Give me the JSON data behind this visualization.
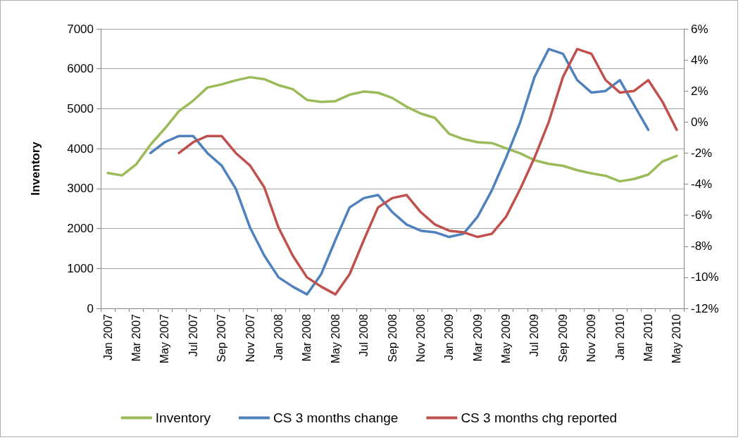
{
  "chart_data": {
    "type": "line",
    "ylabel": "Inventory",
    "categories": [
      "Jan 2007",
      null,
      "Mar 2007",
      null,
      "May 2007",
      null,
      "Jul 2007",
      null,
      "Sep 2007",
      null,
      "Nov 2007",
      null,
      "Jan 2008",
      null,
      "Mar 2008",
      null,
      "May 2008",
      null,
      "Jul 2008",
      null,
      "Sep 2008",
      null,
      "Nov 2008",
      null,
      "Jan 2009",
      null,
      "Mar 2009",
      null,
      "May 2009",
      null,
      "Jul 2009",
      null,
      "Sep 2009",
      null,
      "Nov 2009",
      null,
      "Jan 2010",
      null,
      "Mar 2010",
      null,
      "May 2010"
    ],
    "series": [
      {
        "name": "Inventory",
        "color": "#9bbb59",
        "values": [
          3390,
          3330,
          3610,
          4100,
          4500,
          4940,
          5200,
          5530,
          5610,
          5710,
          5790,
          5740,
          5590,
          5490,
          5220,
          5170,
          5190,
          5350,
          5430,
          5400,
          5270,
          5050,
          4880,
          4770,
          4370,
          4240,
          4160,
          4140,
          4010,
          3880,
          3710,
          3620,
          3570,
          3460,
          3380,
          3320,
          3180,
          3240,
          3350,
          3680,
          3820
        ]
      },
      {
        "name": "CS 3 months change",
        "color": "#4f81bd",
        "axis": "y2",
        "values": [
          null,
          null,
          null,
          -2.0,
          -1.3,
          -0.9,
          -0.9,
          -2.0,
          -2.8,
          -4.3,
          -6.8,
          -8.6,
          -10.0,
          -10.6,
          -11.1,
          -9.8,
          -7.6,
          -5.5,
          -4.9,
          -4.7,
          -5.8,
          -6.6,
          -7.0,
          -7.1,
          -7.4,
          -7.2,
          -6.1,
          -4.4,
          -2.3,
          0.0,
          2.9,
          4.7,
          4.4,
          2.7,
          1.9,
          2.0,
          2.7,
          1.1,
          -0.5,
          null,
          null
        ]
      },
      {
        "name": "CS 3 months chg reported",
        "color": "#c0504d",
        "axis": "y2",
        "values": [
          null,
          null,
          null,
          null,
          null,
          -2.0,
          -1.3,
          -0.9,
          -0.9,
          -2.0,
          -2.8,
          -4.2,
          -6.8,
          -8.6,
          -10.0,
          -10.6,
          -11.1,
          -9.8,
          -7.6,
          -5.5,
          -4.9,
          -4.7,
          -5.8,
          -6.6,
          -7.0,
          -7.1,
          -7.4,
          -7.2,
          -6.1,
          -4.3,
          -2.3,
          0.0,
          2.9,
          4.7,
          4.4,
          2.7,
          1.9,
          2.0,
          2.7,
          1.3,
          -0.5
        ]
      }
    ],
    "ylim": [
      0,
      7000
    ],
    "yticks": [
      0,
      1000,
      2000,
      3000,
      4000,
      5000,
      6000,
      7000
    ],
    "y2lim": [
      -12,
      6
    ],
    "y2ticks": [
      {
        "value": -12,
        "label": "-12%"
      },
      {
        "value": -10,
        "label": "-10%"
      },
      {
        "value": -8,
        "label": "-8%"
      },
      {
        "value": -6,
        "label": "-6%"
      },
      {
        "value": -4,
        "label": "-4%"
      },
      {
        "value": -2,
        "label": "-2%"
      },
      {
        "value": 0,
        "label": "0%"
      },
      {
        "value": 2,
        "label": "2%"
      },
      {
        "value": 4,
        "label": "4%"
      },
      {
        "value": 6,
        "label": "6%"
      }
    ],
    "grid": "y",
    "legend": "bottom",
    "marker": "none"
  }
}
